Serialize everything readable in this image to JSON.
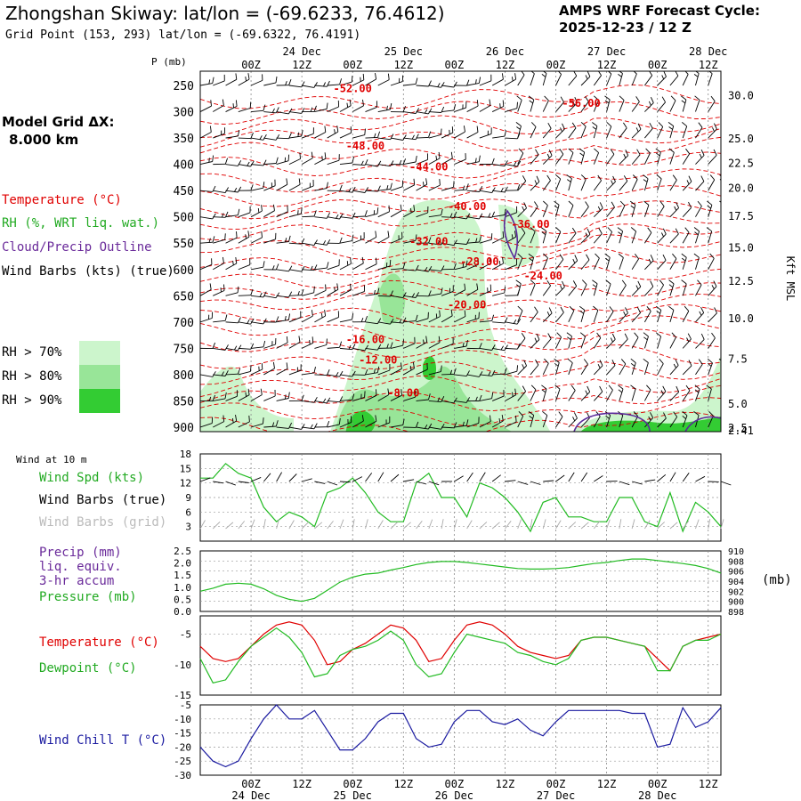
{
  "header": {
    "title": "Zhongshan Skiway:  lat/lon = (-69.6233, 76.4612)",
    "grid_point": "Grid Point (153, 293) lat/lon = (-69.6322, 76.4191)",
    "forecast_line1": "AMPS WRF Forecast Cycle:",
    "forecast_line2": "2025-12-23 / 12  Z"
  },
  "legend": {
    "model_grid_line1": "Model Grid ΔX:",
    "model_grid_line2": "8.000 km",
    "temperature": "Temperature (°C)",
    "rh": "RH (%, WRT liq. wat.)",
    "cloud": "Cloud/Precip Outline",
    "wind_barbs": "Wind Barbs (kts) (true)",
    "rh70": "RH > 70%",
    "rh80": "RH > 80%",
    "rh90": "RH > 90%",
    "colors": {
      "temperature": "#e00000",
      "rh": "#22aa22",
      "cloud": "#6a2a9a",
      "rh70": "#ccf5cc",
      "rh80": "#98e598",
      "rh90": "#33cc33"
    }
  },
  "panel_labels": {
    "wind": {
      "title": "Wind at 10 m",
      "spd": "Wind Spd (kts)",
      "barbs_true": "Wind Barbs (true)",
      "barbs_grid": "Wind Barbs (grid)"
    },
    "precip": {
      "precip": "Precip (mm)",
      "liq": "liq. equiv.",
      "accum": "3-hr accum",
      "pressure": "Pressure (mb)",
      "unit": "(mb)"
    },
    "temp": {
      "temperature": "Temperature (°C)",
      "dewpoint": "Dewpoint (°C)"
    },
    "chill": {
      "wind_chill": "Wind Chill T (°C)"
    }
  },
  "chart_data": {
    "time_axis": {
      "top_dates": [
        {
          "label": "24 Dec",
          "x": 8
        },
        {
          "label": "25 Dec",
          "x": 16
        },
        {
          "label": "26 Dec",
          "x": 24
        },
        {
          "label": "27 Dec",
          "x": 32
        },
        {
          "label": "28 Dec",
          "x": 40
        }
      ],
      "hour_ticks": [
        {
          "label": "00Z",
          "x": 4
        },
        {
          "label": "12Z",
          "x": 8
        },
        {
          "label": "00Z",
          "x": 12
        },
        {
          "label": "12Z",
          "x": 16
        },
        {
          "label": "00Z",
          "x": 20
        },
        {
          "label": "12Z",
          "x": 24
        },
        {
          "label": "00Z",
          "x": 28
        },
        {
          "label": "12Z",
          "x": 32
        },
        {
          "label": "00Z",
          "x": 36
        },
        {
          "label": "12Z",
          "x": 40
        }
      ],
      "bottom_dates": [
        {
          "label": "24 Dec",
          "x": 4
        },
        {
          "label": "25 Dec",
          "x": 12
        },
        {
          "label": "26 Dec",
          "x": 20
        },
        {
          "label": "27 Dec",
          "x": 28
        },
        {
          "label": "28 Dec",
          "x": 36
        }
      ]
    },
    "cross_section": {
      "type": "contour",
      "p_axis_label": "P (mb)",
      "pressure_levels": [
        "250",
        "300",
        "350",
        "400",
        "450",
        "500",
        "550",
        "600",
        "650",
        "700",
        "750",
        "800",
        "850",
        "900"
      ],
      "height_axis_label": "Kft MSL",
      "height_ticks": [
        {
          "label": "30.0",
          "p": 268
        },
        {
          "label": "25.0",
          "p": 350
        },
        {
          "label": "22.5",
          "p": 396
        },
        {
          "label": "20.0",
          "p": 444
        },
        {
          "label": "17.5",
          "p": 497
        },
        {
          "label": "15.0",
          "p": 557
        },
        {
          "label": "12.5",
          "p": 621
        },
        {
          "label": "10.0",
          "p": 692
        },
        {
          "label": "7.5",
          "p": 769
        },
        {
          "label": "5.0",
          "p": 854
        },
        {
          "label": "2.5",
          "p": 900
        },
        {
          "label": "2.41",
          "p": 905
        }
      ],
      "temperature_contour_labels": [
        {
          "label": "-52.00",
          "x": 12,
          "p": 256
        },
        {
          "label": "-56.00",
          "x": 30,
          "p": 284
        },
        {
          "label": "-48.00",
          "x": 13,
          "p": 365
        },
        {
          "label": "-44.00",
          "x": 18,
          "p": 405
        },
        {
          "label": "-40.00",
          "x": 21,
          "p": 480
        },
        {
          "label": "-36.00",
          "x": 26,
          "p": 514
        },
        {
          "label": "-32.00",
          "x": 18,
          "p": 547
        },
        {
          "label": "-28.00",
          "x": 22,
          "p": 585
        },
        {
          "label": "-24.00",
          "x": 27,
          "p": 612
        },
        {
          "label": "-20.00",
          "x": 21,
          "p": 667
        },
        {
          "label": "-16.00",
          "x": 13,
          "p": 733
        },
        {
          "label": "-12.00",
          "x": 14,
          "p": 772
        },
        {
          "label": "-8.00",
          "x": 16,
          "p": 835
        }
      ]
    },
    "wind_10m": {
      "type": "line",
      "ylim": [
        0,
        18
      ],
      "ticks": [
        "3",
        "6",
        "9",
        "12",
        "15",
        "18"
      ],
      "speed": [
        13,
        13,
        16,
        14,
        13,
        7,
        4,
        6,
        5,
        3,
        10,
        11,
        13,
        10,
        6,
        4,
        4,
        12,
        14,
        9,
        9,
        5,
        12,
        11,
        9,
        6,
        2,
        8,
        9,
        5,
        5,
        4,
        4,
        9,
        9,
        4,
        3,
        10,
        2,
        8,
        6,
        3
      ]
    },
    "pressure": {
      "type": "line",
      "ylim": [
        898,
        910
      ],
      "ticks": [
        "898",
        "900",
        "902",
        "904",
        "906",
        "908",
        "910"
      ],
      "values": [
        902.0,
        902.6,
        903.4,
        903.6,
        903.4,
        902.5,
        901.2,
        900.4,
        900.0,
        900.6,
        902.2,
        903.8,
        904.8,
        905.4,
        905.6,
        906.2,
        906.7,
        907.3,
        907.7,
        907.9,
        907.9,
        907.7,
        907.4,
        907.1,
        906.8,
        906.5,
        906.4,
        906.4,
        906.5,
        906.7,
        907.1,
        907.5,
        907.7,
        908.1,
        908.4,
        908.4,
        908.1,
        907.8,
        907.5,
        907.1,
        906.5,
        905.6
      ]
    },
    "precip_axis": {
      "ylim": [
        0,
        2.5
      ],
      "ticks": [
        "0.0",
        "0.5",
        "1.0",
        "1.5",
        "2.0",
        "2.5"
      ]
    },
    "temperature": {
      "type": "line",
      "ylim": [
        -15,
        -2
      ],
      "ticks": [
        "-15",
        "-10",
        "-5"
      ],
      "temp": [
        -7,
        -9,
        -9.5,
        -9,
        -7,
        -5,
        -3.5,
        -3,
        -3.5,
        -6,
        -10,
        -9.5,
        -7.5,
        -6.5,
        -5,
        -3.5,
        -4,
        -6,
        -9.5,
        -9,
        -6,
        -3.5,
        -3,
        -3.5,
        -5,
        -7,
        -8,
        -8.5,
        -9,
        -8.5,
        -6,
        -5.5,
        -5.5,
        -6,
        -6.5,
        -7,
        -9,
        -11,
        -7,
        -6,
        -5.5,
        -5
      ],
      "dewpoint": [
        -9,
        -13,
        -12.5,
        -9.5,
        -7,
        -5.5,
        -4,
        -5.5,
        -8,
        -12,
        -11.5,
        -8.5,
        -7.5,
        -7,
        -6,
        -4.5,
        -6,
        -10,
        -12,
        -11.5,
        -8,
        -5,
        -5.5,
        -6,
        -6.5,
        -8,
        -8.5,
        -9.5,
        -10,
        -9,
        -6,
        -5.5,
        -5.5,
        -6,
        -6.5,
        -7,
        -11,
        -11,
        -7,
        -6,
        -6,
        -5
      ]
    },
    "wind_chill": {
      "type": "line",
      "ylim": [
        -30,
        -5
      ],
      "ticks": [
        "-5",
        "-10",
        "-15",
        "-20",
        "-25",
        "-30"
      ],
      "values": [
        -20,
        -25,
        -27,
        -25,
        -17,
        -10,
        -5,
        -10,
        -10,
        -7,
        -14,
        -21,
        -21,
        -17,
        -11,
        -8,
        -8,
        -17,
        -20,
        -19,
        -11,
        -7,
        -7,
        -11,
        -12,
        -10,
        -14,
        -16,
        -11,
        -7,
        -7,
        -7,
        -7,
        -7,
        -8,
        -8,
        -20,
        -19,
        -6,
        -13,
        -11,
        -6
      ]
    }
  }
}
